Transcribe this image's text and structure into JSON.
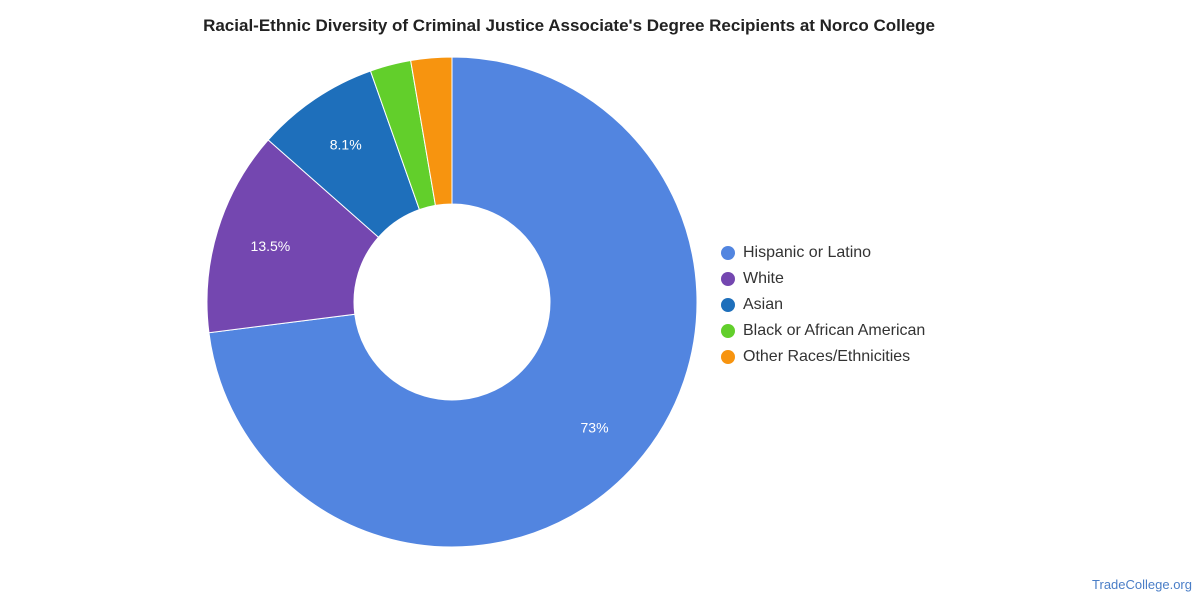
{
  "chart_data": {
    "type": "pie",
    "title": "Racial-Ethnic Diversity of Criminal Justice Associate's Degree Recipients at Norco College",
    "donut": true,
    "legend_position": "right",
    "slices": [
      {
        "name": "Hispanic or Latino",
        "value": 73,
        "label": "73%",
        "color": "#5285e0"
      },
      {
        "name": "White",
        "value": 13.5,
        "label": "13.5%",
        "color": "#7447b0"
      },
      {
        "name": "Asian",
        "value": 8.1,
        "label": "8.1%",
        "color": "#1e6fbb"
      },
      {
        "name": "Black or African American",
        "value": 2.7,
        "label": "",
        "color": "#62cf2b"
      },
      {
        "name": "Other Races/Ethnicities",
        "value": 2.7,
        "label": "",
        "color": "#f7940f"
      }
    ]
  },
  "watermark": "TradeCollege.org"
}
